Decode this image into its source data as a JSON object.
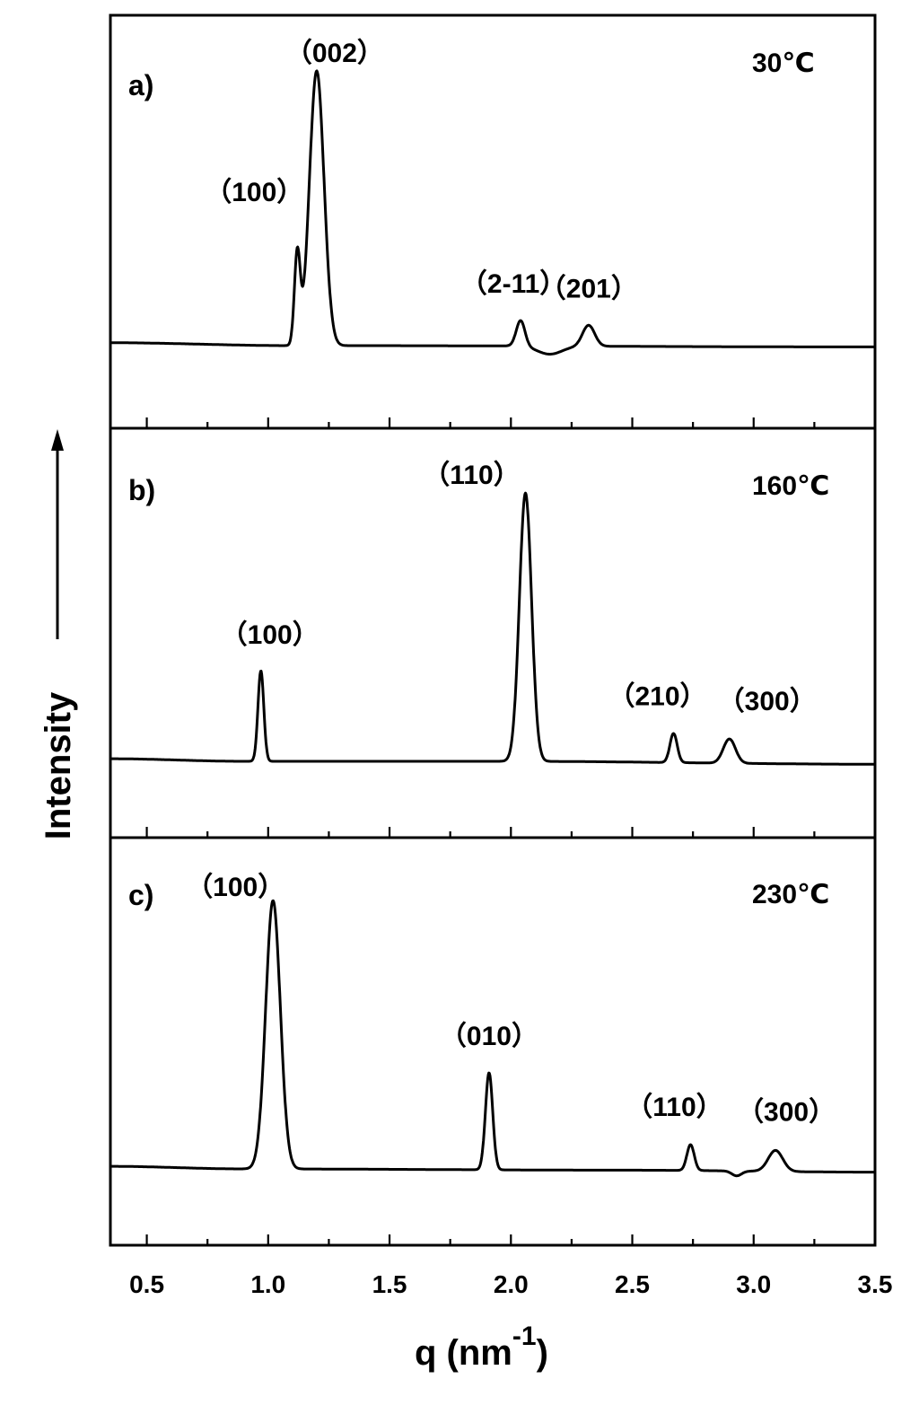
{
  "chart_data": {
    "type": "line",
    "xlabel": "q (nm",
    "xlabel_sup": "-1",
    "xlabel_close": ")",
    "ylabel": "Intensity",
    "xlim": [
      0.35,
      3.5
    ],
    "xticks": [
      0.5,
      1.0,
      1.5,
      2.0,
      2.5,
      3.0,
      3.5
    ],
    "xtick_labels": [
      "0.5",
      "1.0",
      "1.5",
      "2.0",
      "2.5",
      "3.0",
      "3.5"
    ],
    "panels": [
      {
        "label": "a)",
        "temperature": "30℃",
        "baseline": [
          [
            0.35,
            0.9
          ],
          [
            1.1,
            0.0
          ],
          [
            1.3,
            0.0
          ],
          [
            3.5,
            -0.4
          ]
        ],
        "peaks": [
          {
            "q": 1.12,
            "height": 28,
            "width": 0.012,
            "annotation": "（100）"
          },
          {
            "q": 1.2,
            "height": 85,
            "width": 0.03,
            "annotation": "（002）"
          },
          {
            "q": 2.04,
            "height": 8,
            "width": 0.018,
            "annotation": "（2-11）"
          },
          {
            "q": 2.32,
            "height": 6.5,
            "width": 0.025,
            "annotation": "（201）"
          }
        ],
        "dips": [
          {
            "q": 2.16,
            "depth": 2.5,
            "width": 0.05
          }
        ]
      },
      {
        "label": "b)",
        "temperature": "160℃",
        "baseline": [
          [
            0.35,
            0.8
          ],
          [
            0.9,
            0.0
          ],
          [
            2.0,
            0.0
          ],
          [
            3.5,
            -0.9
          ]
        ],
        "peaks": [
          {
            "q": 0.97,
            "height": 28,
            "width": 0.012,
            "annotation": "（100）"
          },
          {
            "q": 2.06,
            "height": 83,
            "width": 0.025,
            "annotation": "（110）"
          },
          {
            "q": 2.67,
            "height": 9,
            "width": 0.015,
            "annotation": "（210）"
          },
          {
            "q": 2.9,
            "height": 7.5,
            "width": 0.025,
            "annotation": "（300）"
          }
        ],
        "dips": []
      },
      {
        "label": "c)",
        "temperature": "230℃",
        "baseline": [
          [
            0.35,
            0.8
          ],
          [
            0.9,
            0.0
          ],
          [
            2.5,
            -0.4
          ],
          [
            3.5,
            -1.0
          ]
        ],
        "peaks": [
          {
            "q": 1.02,
            "height": 83,
            "width": 0.03,
            "annotation": "（100）"
          },
          {
            "q": 1.91,
            "height": 30,
            "width": 0.015,
            "annotation": "（010）"
          },
          {
            "q": 2.74,
            "height": 8,
            "width": 0.015,
            "annotation": "（110）"
          },
          {
            "q": 3.09,
            "height": 6.5,
            "width": 0.03,
            "annotation": "（300）"
          }
        ],
        "dips": [
          {
            "q": 2.93,
            "depth": 1.5,
            "width": 0.02
          }
        ]
      }
    ]
  }
}
